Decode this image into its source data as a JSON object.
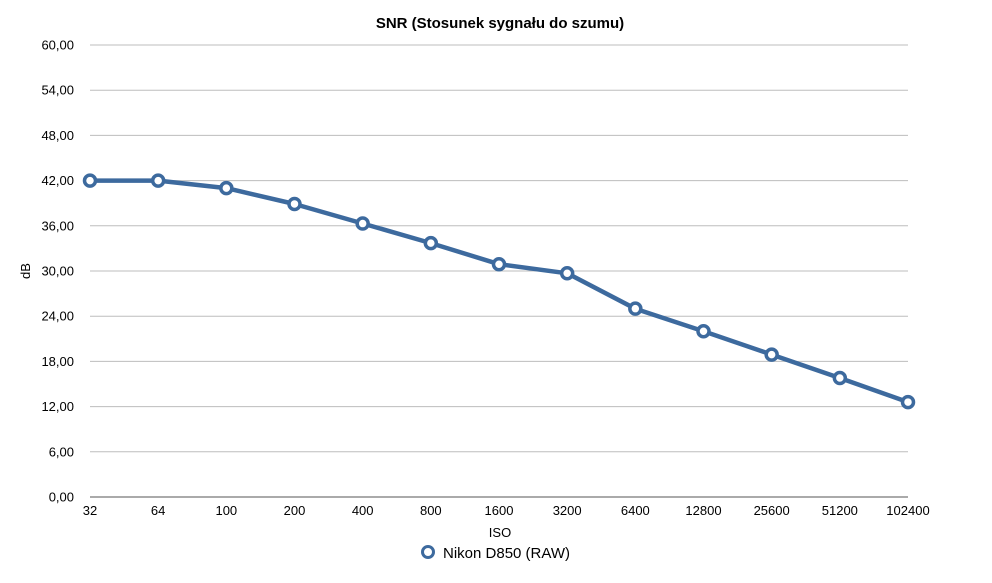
{
  "chart_data": {
    "type": "line",
    "title": "SNR (Stosunek sygnału do szumu)",
    "xlabel": "ISO",
    "ylabel": "dB",
    "categories": [
      "32",
      "64",
      "100",
      "200",
      "400",
      "800",
      "1600",
      "3200",
      "6400",
      "12800",
      "25600",
      "51200",
      "102400"
    ],
    "y_ticks": [
      "0,00",
      "6,00",
      "12,00",
      "18,00",
      "24,00",
      "30,00",
      "36,00",
      "42,00",
      "48,00",
      "54,00",
      "60,00"
    ],
    "ylim": [
      0,
      60
    ],
    "grid": true,
    "legend_position": "bottom",
    "series": [
      {
        "name": "Nikon D850 (RAW)",
        "color": "#3d6a9e",
        "values": [
          42.0,
          42.0,
          41.0,
          38.9,
          36.3,
          33.7,
          30.9,
          29.7,
          25.0,
          22.0,
          18.9,
          15.8,
          12.6
        ]
      }
    ]
  }
}
